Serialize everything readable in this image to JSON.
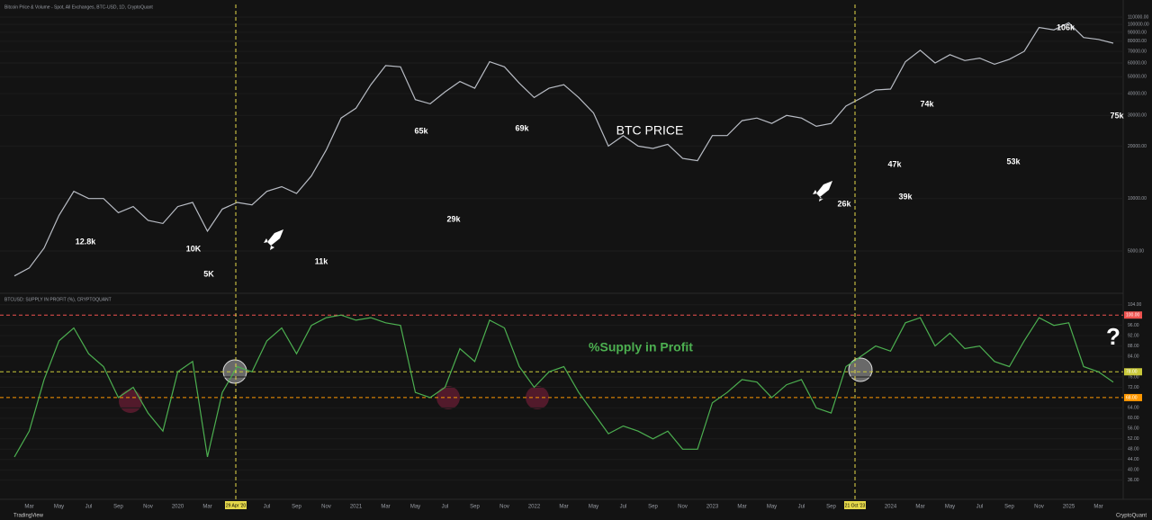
{
  "header": {
    "price_title": "Bitcoin Price & Volume - Spot, All Exchanges, BTC-USD, 1D, CryptoQuant",
    "supply_title": "BTCUSD: SUPPLY IN PROFIT (%), CRYPTOQUANT"
  },
  "footer": {
    "left": "TradingView",
    "right": "CryptoQuant"
  },
  "chart_data": [
    {
      "type": "line",
      "log_scale": true,
      "color": "#b8bcc4",
      "values": [
        3600,
        4000,
        5200,
        8000,
        11000,
        10000,
        10000,
        8300,
        9000,
        7500,
        7200,
        9000,
        9500,
        6500,
        8700,
        9500,
        9200,
        11000,
        11700,
        10700,
        13500,
        19000,
        29000,
        33000,
        45000,
        58000,
        57000,
        37000,
        35000,
        41000,
        47000,
        43000,
        61000,
        57000,
        46000,
        38000,
        43000,
        45000,
        38000,
        31000,
        20000,
        23000,
        20000,
        19400,
        20500,
        17000,
        16500,
        23000,
        23000,
        28000,
        29000,
        27000,
        30000,
        29000,
        26000,
        27000,
        34000,
        37700,
        42000,
        42500,
        61000,
        71000,
        60000,
        67000,
        62000,
        64000,
        59000,
        63000,
        70000,
        96000,
        93000,
        102000,
        84000,
        82000,
        78000
      ],
      "ylim": [
        3000,
        130000
      ],
      "yticks": [
        {
          "value": 5000,
          "label": "5000.00"
        },
        {
          "value": 10000,
          "label": "10000.00"
        },
        {
          "value": 20000,
          "label": "20000.00"
        },
        {
          "value": 30000,
          "label": "30000.00"
        },
        {
          "value": 40000,
          "label": "40000.00"
        },
        {
          "value": 50000,
          "label": "50000.00"
        },
        {
          "value": 60000,
          "label": "60000.00"
        },
        {
          "value": 70000,
          "label": "70000.00"
        },
        {
          "value": 80000,
          "label": "80000.00"
        },
        {
          "value": 90000,
          "label": "90000.00"
        },
        {
          "value": 100000,
          "label": "100000.00"
        },
        {
          "value": 110000,
          "label": "110000.00"
        }
      ],
      "annotations": [
        "12.8k",
        "10K",
        "5K",
        "11k",
        "65k",
        "29k",
        "69k",
        "BTC PRICE",
        "26k",
        "47k",
        "39k",
        "74k",
        "53k",
        "106k",
        "75k"
      ]
    },
    {
      "type": "line",
      "color": "#4caf50",
      "categories": [
        null,
        "Mar",
        null,
        "May",
        null,
        "Jul",
        null,
        "Sep",
        null,
        "Nov",
        null,
        "2020",
        null,
        "Mar",
        null,
        null,
        null,
        "Jul",
        null,
        "Sep",
        null,
        "Nov",
        null,
        "2021",
        null,
        "Mar",
        null,
        "May",
        null,
        "Jul",
        null,
        "Sep",
        null,
        "Nov",
        null,
        "2022",
        null,
        "Mar",
        null,
        "May",
        null,
        "Jul",
        null,
        "Sep",
        null,
        "Nov",
        null,
        "2023",
        null,
        "Mar",
        null,
        "May",
        null,
        "Jul",
        null,
        "Sep",
        null,
        null,
        null,
        "2024",
        null,
        "Mar",
        null,
        "May",
        null,
        "Jul",
        null,
        "Sep",
        null,
        "Nov",
        null,
        "2025",
        null,
        "Mar",
        null
      ],
      "values": [
        45,
        55,
        75,
        90,
        95,
        85,
        80,
        68,
        72,
        62,
        55,
        78,
        82,
        45,
        70,
        80,
        78,
        90,
        95,
        85,
        96,
        99,
        100,
        98,
        99,
        97,
        96,
        70,
        68,
        72,
        87,
        82,
        98,
        95,
        80,
        72,
        78,
        80,
        70,
        62,
        54,
        57,
        55,
        52,
        55,
        48,
        48,
        66,
        70,
        75,
        74,
        68,
        73,
        75,
        64,
        62,
        80,
        84,
        88,
        86,
        97,
        99,
        88,
        93,
        87,
        88,
        82,
        80,
        90,
        99,
        96,
        97,
        80,
        78,
        74
      ],
      "ylim": [
        31,
        106
      ],
      "yticks": [
        {
          "value": 36,
          "label": "36.00"
        },
        {
          "value": 40,
          "label": "40.00"
        },
        {
          "value": 44,
          "label": "44.00"
        },
        {
          "value": 48,
          "label": "48.00"
        },
        {
          "value": 52,
          "label": "52.00"
        },
        {
          "value": 56,
          "label": "56.00"
        },
        {
          "value": 60,
          "label": "60.00"
        },
        {
          "value": 64,
          "label": "64.00"
        },
        {
          "value": 72,
          "label": "72.00"
        },
        {
          "value": 76,
          "label": "76.00"
        },
        {
          "value": 84,
          "label": "84.00"
        },
        {
          "value": 88,
          "label": "88.00"
        },
        {
          "value": 92,
          "label": "92.00"
        },
        {
          "value": 96,
          "label": "96.00"
        },
        {
          "value": 104,
          "label": "104.00"
        }
      ],
      "hlines": [
        {
          "value": 100,
          "label": "100.00",
          "color": "#ef5350"
        },
        {
          "value": 78,
          "label": "78.00",
          "color": "#c9c93a"
        },
        {
          "value": 68,
          "label": "68.00",
          "color": "#ff9800"
        }
      ],
      "x_markers": [
        "29 Apr '20",
        "21 Oct '23"
      ],
      "annotations": [
        "%Supply in Profit",
        "?"
      ]
    }
  ]
}
